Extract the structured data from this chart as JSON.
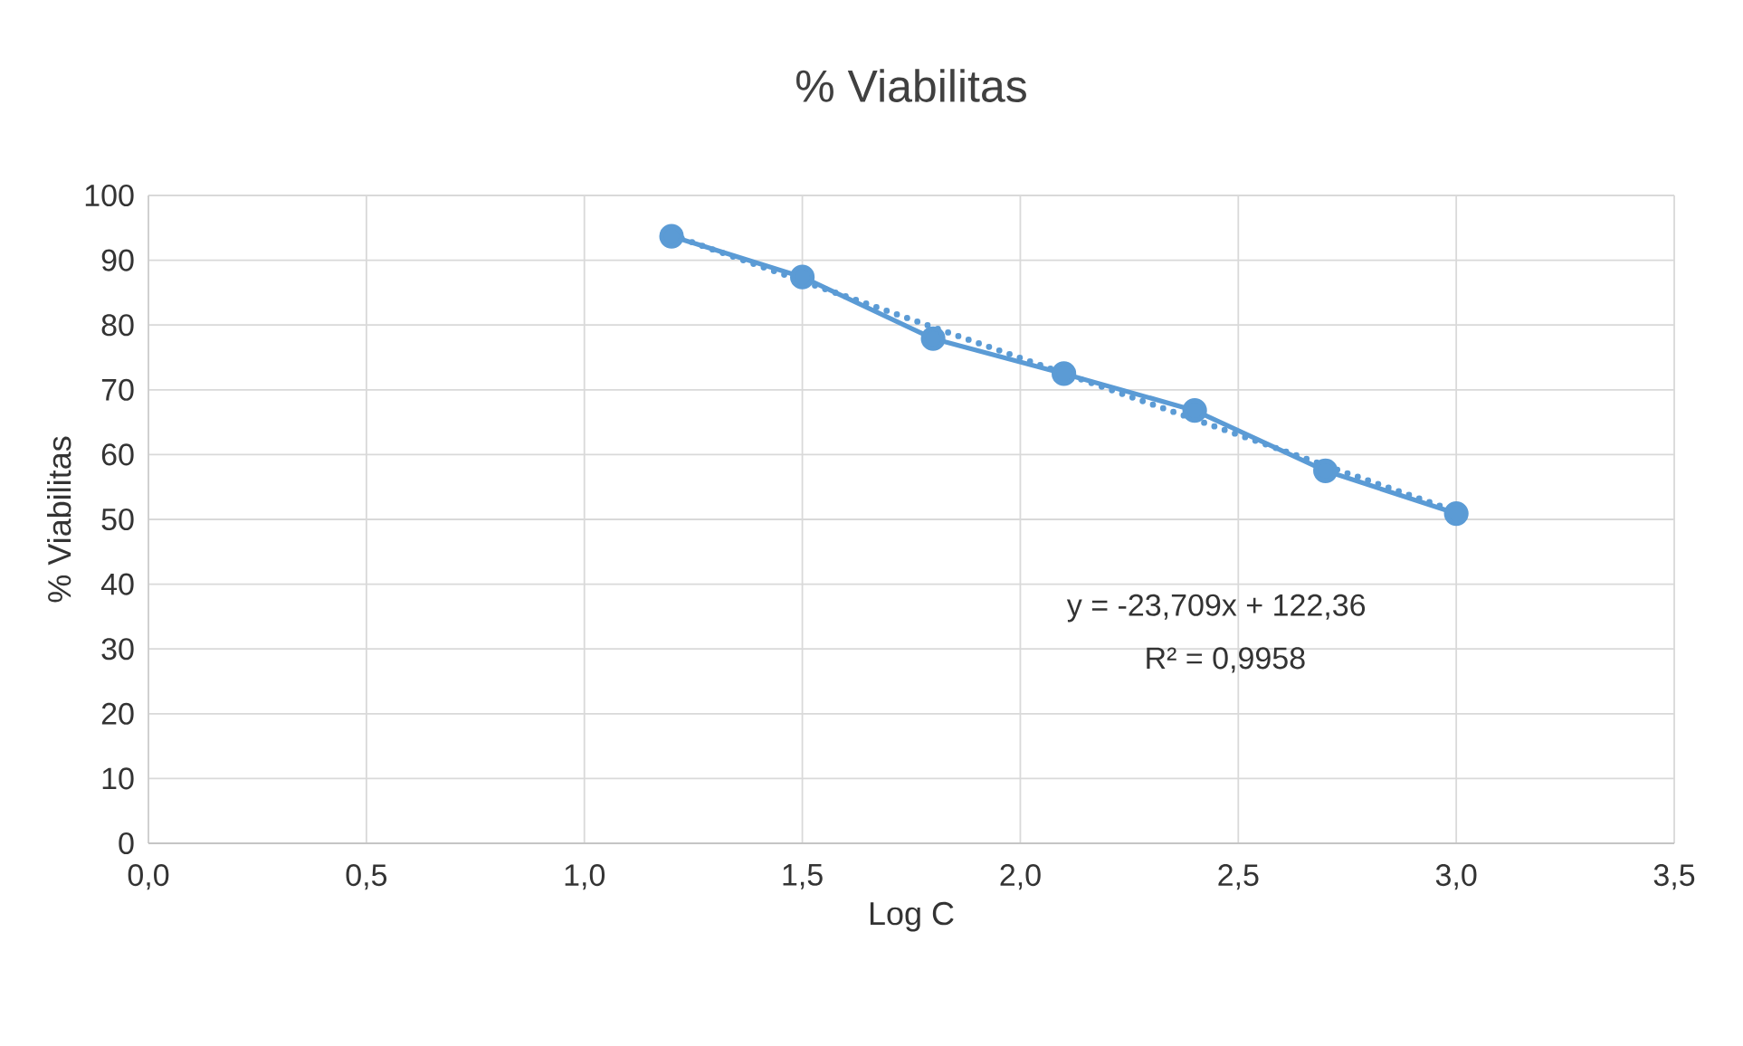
{
  "chart_data": {
    "type": "line",
    "title": "% Viabilitas",
    "xlabel": "Log C",
    "ylabel": "% Viabilitas",
    "xlim": [
      0,
      3.5
    ],
    "ylim": [
      0,
      100
    ],
    "xticks": [
      {
        "value": 0,
        "label": "0,0"
      },
      {
        "value": 0.5,
        "label": "0,5"
      },
      {
        "value": 1,
        "label": "1,0"
      },
      {
        "value": 1.5,
        "label": "1,5"
      },
      {
        "value": 2,
        "label": "2,0"
      },
      {
        "value": 2.5,
        "label": "2,5"
      },
      {
        "value": 3,
        "label": "3,0"
      },
      {
        "value": 3.5,
        "label": "3,5"
      }
    ],
    "yticks": [
      0,
      10,
      20,
      30,
      40,
      50,
      60,
      70,
      80,
      90,
      100
    ],
    "grid": true,
    "series": [
      {
        "color": "#5b9bd5",
        "marker": "circle",
        "line_style": "solid",
        "x": [
          1.2,
          1.5,
          1.8,
          2.1,
          2.4,
          2.7,
          3.0
        ],
        "values": [
          93.7,
          87.4,
          77.9,
          72.5,
          66.8,
          57.5,
          50.9
        ]
      },
      {
        "color": "#5b9bd5",
        "marker": "none",
        "line_style": "dotted",
        "x": [
          1.2,
          3.0
        ],
        "values": [
          93.9,
          51.2
        ]
      }
    ],
    "annotations": [
      "y = -23,709x + 122,36",
      "R² = 0,9958"
    ]
  }
}
